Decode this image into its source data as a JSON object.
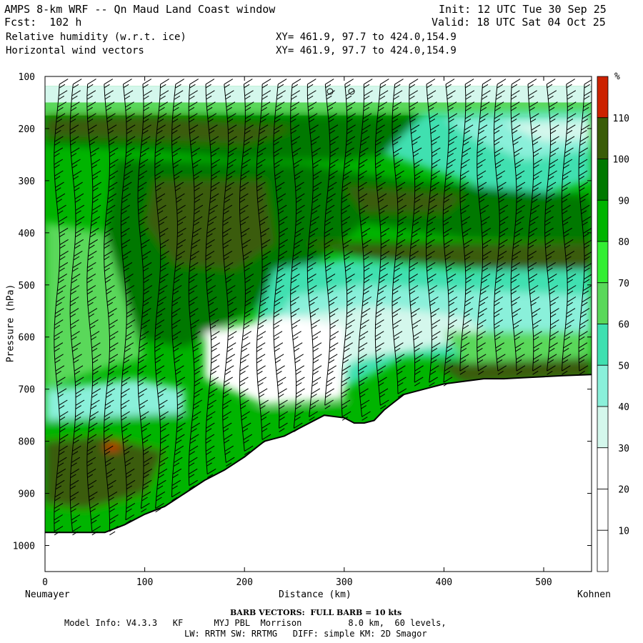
{
  "header": {
    "title": "AMPS 8-km WRF -- Qn Maud Land Coast window",
    "fcst": "Fcst:  102 h",
    "field1": "Relative humidity (w.r.t. ice)",
    "field2": "Horizontal wind vectors",
    "init": "Init: 12 UTC Tue 30 Sep 25",
    "valid": "Valid: 18 UTC Sat 04 Oct 25",
    "xy1": "XY= 461.9, 97.7 to 424.0,154.9",
    "xy2": "XY= 461.9, 97.7 to 424.0,154.9"
  },
  "footer": {
    "barb": "BARB VECTORS:  FULL BARB = 10 kts",
    "model": "Model Info: V4.3.3   KF      MYJ PBL  Morrison         8.0 km,  60 levels,",
    "physics": "LW: RRTM SW: RRTMG   DIFF: simple KM: 2D Smagor"
  },
  "chart_data": {
    "type": "heatmap",
    "title": "Relative humidity (w.r.t. ice) and horizontal wind vectors",
    "xlabel": "Distance (km)",
    "ylabel": "Pressure (hPa)",
    "x_end_labels": {
      "left": "Neumayer",
      "right": "Kohnen"
    },
    "xlim": [
      0,
      548
    ],
    "ylim": [
      1050,
      100
    ],
    "x_ticks": [
      0,
      100,
      200,
      300,
      400,
      500
    ],
    "y_ticks": [
      100,
      200,
      300,
      400,
      500,
      600,
      700,
      800,
      900,
      1000
    ],
    "colorbar": {
      "unit": "%",
      "levels": [
        10,
        20,
        30,
        40,
        50,
        60,
        70,
        80,
        90,
        100,
        110
      ],
      "colors": [
        "#ffffff",
        "#ffffff",
        "#ffffff",
        "#d4f7ec",
        "#8af0da",
        "#3fe0b0",
        "#5ad85a",
        "#33ee33",
        "#00b400",
        "#007800",
        "#3a5c08",
        "#cc2200"
      ]
    },
    "terrain": {
      "x": [
        0,
        20,
        40,
        60,
        80,
        100,
        120,
        140,
        160,
        180,
        200,
        220,
        240,
        260,
        280,
        300,
        310,
        320,
        330,
        340,
        350,
        360,
        380,
        400,
        420,
        440,
        460,
        480,
        500,
        520,
        548
      ],
      "p": [
        975,
        975,
        975,
        975,
        960,
        940,
        925,
        900,
        875,
        855,
        830,
        800,
        790,
        770,
        750,
        755,
        765,
        765,
        760,
        740,
        725,
        710,
        700,
        690,
        685,
        680,
        680,
        678,
        676,
        674,
        672
      ]
    },
    "regions": [
      {
        "level": "30-40",
        "x": [
          0,
          548
        ],
        "p": [
          120,
          160
        ]
      },
      {
        "level": "20-30",
        "x": [
          140,
          300
        ],
        "p": [
          580,
          720
        ]
      },
      {
        "level": "100-110",
        "x": [
          90,
          230
        ],
        "p": [
          300,
          600
        ]
      },
      {
        "level": "100-110",
        "x": [
          270,
          548
        ],
        "p": [
          420,
          470
        ]
      },
      {
        "level": "100-110",
        "x": [
          390,
          548
        ],
        "p": [
          650,
          680
        ]
      },
      {
        "level": "100-110",
        "x": [
          0,
          100
        ],
        "p": [
          800,
          900
        ]
      },
      {
        "level": "110+",
        "x": [
          60,
          75
        ],
        "p": [
          805,
          815
        ]
      }
    ],
    "wind_barb_columns_km": [
      12,
      28,
      45,
      62,
      79,
      96,
      113,
      130,
      147,
      164,
      181,
      198,
      215,
      232,
      249,
      266,
      283,
      300,
      317,
      334,
      351,
      368,
      385,
      402,
      419,
      436,
      453,
      470,
      487,
      504,
      521,
      538
    ],
    "barb_unit": "FULL BARB = 10 kts"
  }
}
